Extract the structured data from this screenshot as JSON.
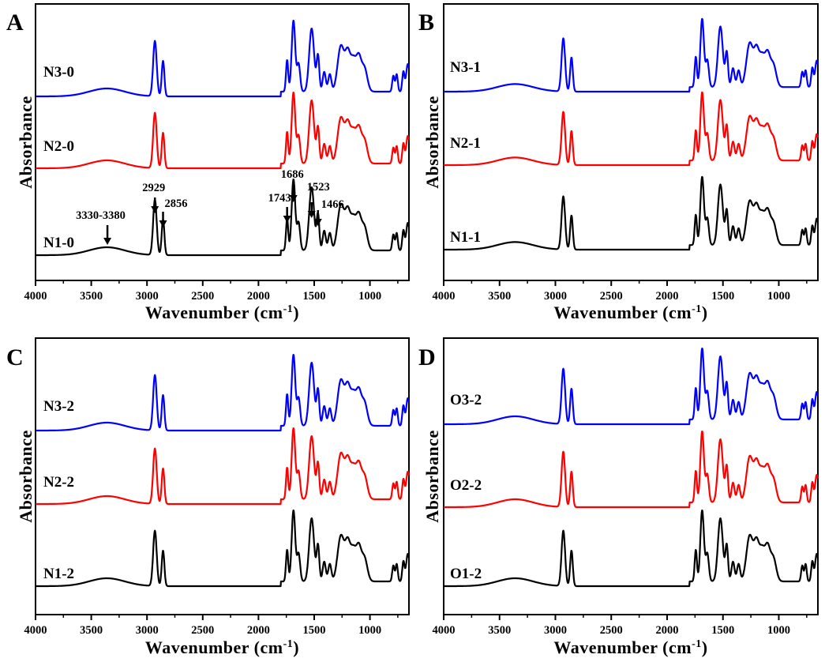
{
  "chart_data": [
    {
      "type": "line",
      "panel": "A",
      "xlabel": "Wavenumber (cm",
      "xlabel_sup": "-1",
      "xlabel_tail": ")",
      "ylabel": "Absorbance",
      "xlim": [
        4000,
        650
      ],
      "x_reversed": true,
      "xticks": [
        4000,
        3500,
        3000,
        2500,
        2000,
        1500,
        1000
      ],
      "yticks_shown": false,
      "grid": false,
      "series": [
        {
          "name": "N1-0",
          "color": "#000000",
          "offset": 0.0
        },
        {
          "name": "N2-0",
          "color": "#ff0000",
          "offset": 1.0
        },
        {
          "name": "N3-0",
          "color": "#0000ff",
          "offset": 2.0
        }
      ],
      "annotations": [
        {
          "text": "3330-3380",
          "x": 3355
        },
        {
          "text": "2929",
          "x": 2929
        },
        {
          "text": "2856",
          "x": 2856
        },
        {
          "text": "1743",
          "x": 1743
        },
        {
          "text": "1686",
          "x": 1686
        },
        {
          "text": "1523",
          "x": 1523
        },
        {
          "text": "1466",
          "x": 1466
        }
      ]
    },
    {
      "type": "line",
      "panel": "B",
      "xlabel": "Wavenumber (cm",
      "xlabel_sup": "-1",
      "xlabel_tail": ")",
      "ylabel": "Absorbance",
      "xlim": [
        4000,
        650
      ],
      "x_reversed": true,
      "xticks": [
        4000,
        3500,
        3000,
        2500,
        2000,
        1500,
        1000
      ],
      "yticks_shown": false,
      "grid": false,
      "series": [
        {
          "name": "N1-1",
          "color": "#000000",
          "offset": 0.0
        },
        {
          "name": "N2-1",
          "color": "#ff0000",
          "offset": 1.0
        },
        {
          "name": "N3-1",
          "color": "#0000ff",
          "offset": 2.0
        }
      ]
    },
    {
      "type": "line",
      "panel": "C",
      "xlabel": "Wavenumber (cm",
      "xlabel_sup": "-1",
      "xlabel_tail": ")",
      "ylabel": "Absorbance",
      "xlim": [
        4000,
        650
      ],
      "x_reversed": true,
      "xticks": [
        4000,
        3500,
        3000,
        2500,
        2000,
        1500,
        1000
      ],
      "yticks_shown": false,
      "grid": false,
      "series": [
        {
          "name": "N1-2",
          "color": "#000000",
          "offset": 0.0
        },
        {
          "name": "N2-2",
          "color": "#ff0000",
          "offset": 1.0
        },
        {
          "name": "N3-2",
          "color": "#0000ff",
          "offset": 2.0
        }
      ]
    },
    {
      "type": "line",
      "panel": "D",
      "xlabel": "Wavenumber (cm",
      "xlabel_sup": "-1",
      "xlabel_tail": ")",
      "ylabel": "Absorbance",
      "xlim": [
        4000,
        650
      ],
      "x_reversed": true,
      "xticks": [
        4000,
        3500,
        3000,
        2500,
        2000,
        1500,
        1000
      ],
      "yticks_shown": false,
      "grid": false,
      "series": [
        {
          "name": "O1-2",
          "color": "#000000",
          "offset": 0.0
        },
        {
          "name": "O2-2",
          "color": "#ff0000",
          "offset": 1.0
        },
        {
          "name": "O3-2",
          "color": "#0000ff",
          "offset": 2.0
        }
      ]
    }
  ]
}
